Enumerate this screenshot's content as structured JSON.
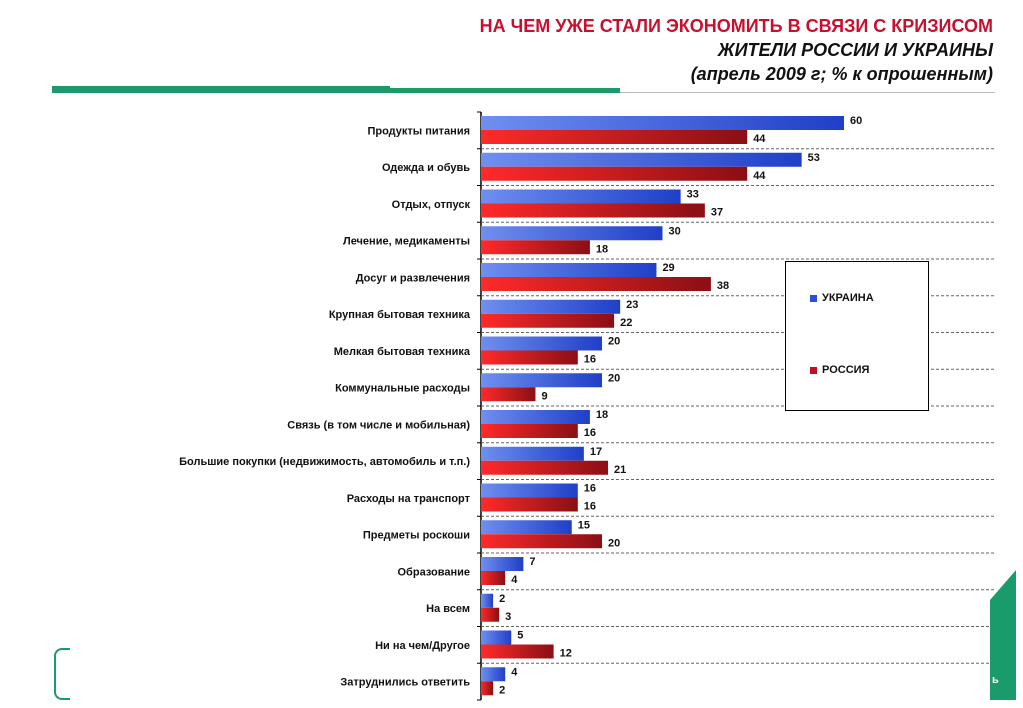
{
  "header": {
    "title_line1": "НА ЧЕМ УЖЕ СТАЛИ ЭКОНОМИТЬ В СВЯЗИ С КРИЗИСОМ",
    "title_line2": "ЖИТЕЛИ РОССИИ И УКРАИНЫ",
    "title_line3": "(апрель 2009 г; % к опрошенным)"
  },
  "footer": {
    "corner_letter": "ь"
  },
  "colors": {
    "ukraine": "#2b4fd8",
    "russia": "#c0111f",
    "accent": "#1a9b6b",
    "title_red": "#c8102e"
  },
  "chart_data": {
    "type": "bar",
    "orientation": "horizontal",
    "categories": [
      "Продукты питания",
      "Одежда и обувь",
      "Отдых, отпуск",
      "Лечение, медикаменты",
      "Досуг и развлечения",
      "Крупная бытовая техника",
      "Мелкая бытовая техника",
      "Коммунальные расходы",
      "Связь (в том числе и мобильная)",
      "Большие покупки (недвижимость, автомобиль и т.п.)",
      "Расходы на транспорт",
      "Предметы роскоши",
      "Образование",
      "На всем",
      "Ни на чем/Другое",
      "Затруднились ответить"
    ],
    "series": [
      {
        "name": "УКРАИНА",
        "values": [
          60,
          53,
          33,
          30,
          29,
          23,
          20,
          20,
          18,
          17,
          16,
          15,
          7,
          2,
          5,
          4
        ]
      },
      {
        "name": "РОССИЯ",
        "values": [
          44,
          44,
          37,
          18,
          38,
          22,
          16,
          9,
          16,
          21,
          16,
          20,
          4,
          3,
          12,
          2
        ]
      }
    ],
    "xlim": [
      0,
      100
    ],
    "legend_position": "right",
    "grid": true
  }
}
